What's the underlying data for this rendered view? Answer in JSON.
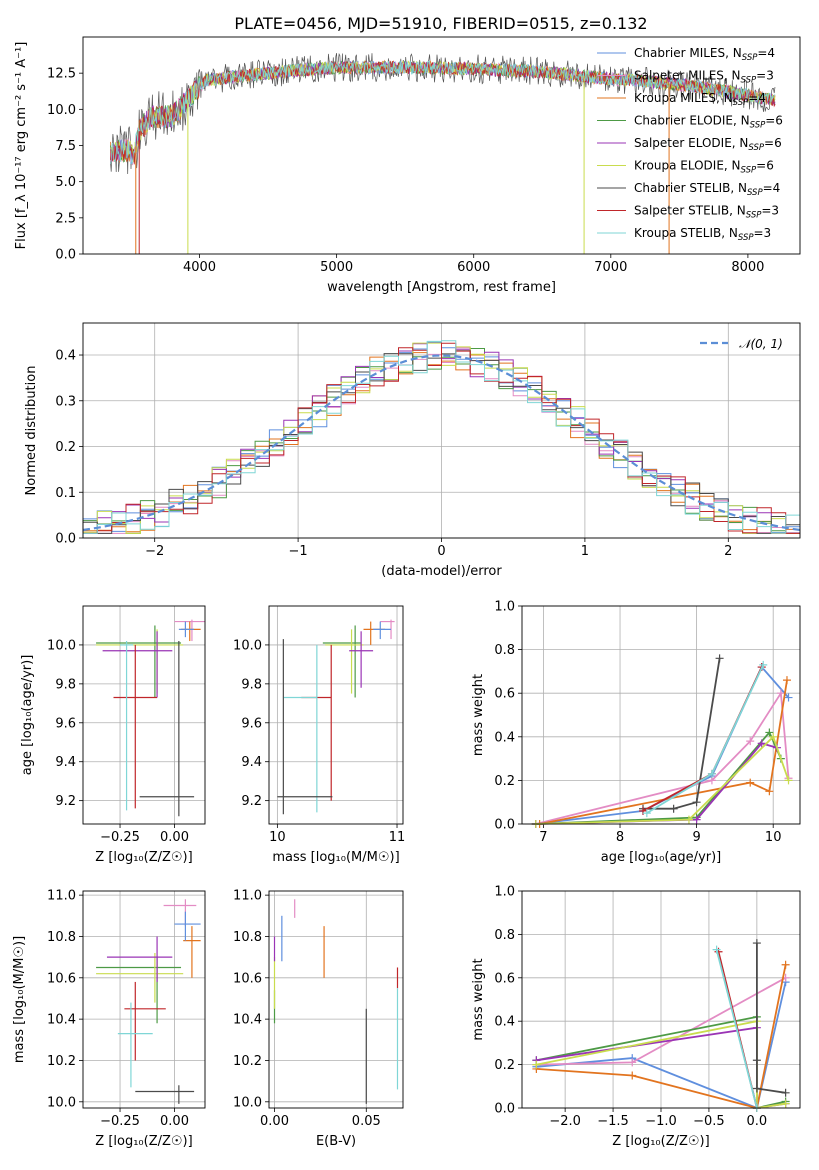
{
  "figure_title": "PLATE=0456, MJD=51910, FIBERID=0515, z=0.132",
  "chart_data": [
    {
      "id": "spectrum",
      "type": "line",
      "title": "PLATE=0456, MJD=51910, FIBERID=0515, z=0.132",
      "xlabel": "wavelength [Angstrom, rest frame]",
      "ylabel": "Flux [f_λ 10⁻¹⁷ erg cm⁻² s⁻¹ A⁻¹]",
      "xlim": [
        3150,
        8380
      ],
      "ylim": [
        0,
        15
      ],
      "xticks": [
        4000,
        5000,
        6000,
        7000,
        8000
      ],
      "yticks": [
        0.0,
        2.5,
        5.0,
        7.5,
        10.0,
        12.5
      ],
      "ytick_labels": [
        "0.0",
        "2.5",
        "5.0",
        "7.5",
        "10.0",
        "12.5"
      ],
      "legend_position": "upper right",
      "spectrum_envelope": {
        "x": [
          3350,
          3480,
          3520,
          3560,
          3650,
          3800,
          3950,
          4050,
          4300,
          4600,
          5000,
          5500,
          6000,
          6500,
          7000,
          7300,
          7600,
          8000,
          8200
        ],
        "y": [
          7.0,
          7.2,
          6.8,
          8.5,
          9.5,
          9.5,
          11.0,
          12.0,
          12.3,
          12.6,
          12.9,
          12.9,
          12.8,
          12.6,
          12.1,
          11.9,
          11.6,
          11.0,
          10.6
        ]
      },
      "series": [
        {
          "name": "Chabrier MILES, N_SSP=4",
          "label_main": "Chabrier MILES, N",
          "label_sub": "SSP",
          "label_tail": "=4",
          "color": "#5f8fde"
        },
        {
          "name": "Salpeter MILES, N_SSP=3",
          "label_main": "Salpeter MILES, N",
          "label_sub": "SSP",
          "label_tail": "=3",
          "color": "#e38cc4"
        },
        {
          "name": "Kroupa MILES, N_SSP=4",
          "label_main": "Kroupa MILES, N",
          "label_sub": "SSP",
          "label_tail": "=4",
          "color": "#e2741f"
        },
        {
          "name": "Chabrier ELODIE, N_SSP=6",
          "label_main": "Chabrier ELODIE, N",
          "label_sub": "SSP",
          "label_tail": "=6",
          "color": "#4d9a45"
        },
        {
          "name": "Salpeter ELODIE, N_SSP=6",
          "label_main": "Salpeter ELODIE, N",
          "label_sub": "SSP",
          "label_tail": "=6",
          "color": "#9a34b5"
        },
        {
          "name": "Kroupa ELODIE, N_SSP=6",
          "label_main": "Kroupa ELODIE, N",
          "label_sub": "SSP",
          "label_tail": "=6",
          "color": "#c9dc4e"
        },
        {
          "name": "Chabrier STELIB, N_SSP=4",
          "label_main": "Chabrier STELIB, N",
          "label_sub": "SSP",
          "label_tail": "=4",
          "color": "#4b4b4b"
        },
        {
          "name": "Salpeter STELIB, N_SSP=3",
          "label_main": "Salpeter STELIB, N",
          "label_sub": "SSP",
          "label_tail": "=3",
          "color": "#c0262a"
        },
        {
          "name": "Kroupa STELIB, N_SSP=3",
          "label_main": "Kroupa STELIB, N",
          "label_sub": "SSP",
          "label_tail": "=3",
          "color": "#7fd6d6"
        }
      ],
      "absorption_features": [
        {
          "x": 3535,
          "color": "#e2741f"
        },
        {
          "x": 3560,
          "color": "#c0262a"
        },
        {
          "x": 3915,
          "color": "#c9dc4e"
        },
        {
          "x": 6805,
          "color": "#c9dc4e"
        },
        {
          "x": 7425,
          "color": "#e2741f"
        }
      ]
    },
    {
      "id": "residuals",
      "type": "histogram",
      "xlabel": "(data-model)/error",
      "ylabel": "Normed distribution",
      "xlim": [
        -2.5,
        2.5
      ],
      "ylim": [
        0,
        0.47
      ],
      "xticks": [
        -2,
        -1,
        0,
        1,
        2
      ],
      "xtick_labels": [
        "−2",
        "−1",
        "0",
        "1",
        "2"
      ],
      "yticks": [
        0.0,
        0.1,
        0.2,
        0.3,
        0.4
      ],
      "ytick_labels": [
        "0.0",
        "0.1",
        "0.2",
        "0.3",
        "0.4"
      ],
      "grid": true,
      "bins": {
        "start": -2.5,
        "width": 0.1,
        "count": 50
      },
      "reference": {
        "name": "N(0,1)",
        "label": "𝒩(0, 1)",
        "color": "#5b8ed6",
        "style": "dashed",
        "sigma": 1.0,
        "mu": 0.0
      }
    },
    {
      "id": "age_vs_metallicity",
      "type": "errorbar",
      "xlabel": "Z [log₁₀(Z/Z☉)]",
      "ylabel": "age  [log₁₀(age/yr)]",
      "xlim": [
        -0.42,
        0.14
      ],
      "ylim": [
        9.08,
        10.2
      ],
      "xticks": [
        -0.25,
        0.0
      ],
      "xtick_labels": [
        "−0.25",
        "0.00"
      ],
      "yticks": [
        9.2,
        9.4,
        9.6,
        9.8,
        10.0
      ],
      "ytick_labels": [
        "9.2",
        "9.4",
        "9.6",
        "9.8",
        "10.0"
      ],
      "grid": true,
      "points": [
        {
          "x": 0.08,
          "xlo": 0.0,
          "xhi": 0.14,
          "y": 10.12,
          "ylo": 10.02,
          "yhi": 10.13,
          "color": "#e38cc4"
        },
        {
          "x": 0.07,
          "xlo": 0.03,
          "xhi": 0.12,
          "y": 10.08,
          "ylo": 10.02,
          "yhi": 10.12,
          "color": "#e2741f"
        },
        {
          "x": 0.05,
          "xlo": 0.02,
          "xhi": 0.09,
          "y": 10.08,
          "ylo": 10.04,
          "yhi": 10.12,
          "color": "#5f8fde"
        },
        {
          "x": -0.09,
          "xlo": -0.36,
          "xhi": 0.03,
          "y": 10.01,
          "ylo": 9.73,
          "yhi": 10.1,
          "color": "#4d9a45"
        },
        {
          "x": -0.08,
          "xlo": -0.36,
          "xhi": 0.04,
          "y": 10.0,
          "ylo": 9.75,
          "yhi": 10.08,
          "color": "#c9dc4e"
        },
        {
          "x": -0.08,
          "xlo": -0.33,
          "xhi": -0.01,
          "y": 9.97,
          "ylo": 9.73,
          "yhi": 10.07,
          "color": "#9a34b5"
        },
        {
          "x": -0.18,
          "xlo": -0.28,
          "xhi": -0.08,
          "y": 9.73,
          "ylo": 9.16,
          "yhi": 10.0,
          "color": "#c0262a"
        },
        {
          "x": -0.22,
          "xlo": -0.25,
          "xhi": -0.19,
          "y": 10.0,
          "ylo": 9.15,
          "yhi": 10.02,
          "color": "#7fd6d6"
        },
        {
          "x": 0.02,
          "xlo": -0.16,
          "xhi": 0.09,
          "y": 9.22,
          "ylo": 9.12,
          "yhi": 10.02,
          "color": "#4b4b4b"
        }
      ]
    },
    {
      "id": "age_vs_mass",
      "type": "errorbar",
      "xlabel": "mass [log₁₀(M/M☉)]",
      "ylabel": "",
      "xlim": [
        9.93,
        11.05
      ],
      "ylim": [
        9.08,
        10.2
      ],
      "xticks": [
        10,
        11
      ],
      "xtick_labels": [
        "10",
        "11"
      ],
      "yticks": [
        9.2,
        9.4,
        9.6,
        9.8,
        10.0
      ],
      "ytick_labels": [
        "9.2",
        "9.4",
        "9.6",
        "9.8",
        "10.0"
      ],
      "grid": true,
      "points": [
        {
          "x": 10.95,
          "xlo": 10.86,
          "xhi": 10.98,
          "y": 10.12,
          "ylo": 10.03,
          "yhi": 10.13,
          "color": "#e38cc4"
        },
        {
          "x": 10.78,
          "xlo": 10.72,
          "xhi": 10.9,
          "y": 10.08,
          "ylo": 10.0,
          "yhi": 10.12,
          "color": "#e2741f"
        },
        {
          "x": 10.86,
          "xlo": 10.8,
          "xhi": 10.95,
          "y": 10.08,
          "ylo": 10.03,
          "yhi": 10.12,
          "color": "#5f8fde"
        },
        {
          "x": 10.65,
          "xlo": 10.38,
          "xhi": 10.7,
          "y": 10.01,
          "ylo": 9.73,
          "yhi": 10.1,
          "color": "#4d9a45"
        },
        {
          "x": 10.62,
          "xlo": 10.4,
          "xhi": 10.72,
          "y": 10.0,
          "ylo": 9.75,
          "yhi": 10.08,
          "color": "#c9dc4e"
        },
        {
          "x": 10.7,
          "xlo": 10.6,
          "xhi": 10.8,
          "y": 9.97,
          "ylo": 9.78,
          "yhi": 10.07,
          "color": "#9a34b5"
        },
        {
          "x": 10.45,
          "xlo": 10.2,
          "xhi": 10.45,
          "y": 9.73,
          "ylo": 9.2,
          "yhi": 10.0,
          "color": "#c0262a"
        },
        {
          "x": 10.33,
          "xlo": 10.05,
          "xhi": 10.33,
          "y": 9.73,
          "ylo": 9.14,
          "yhi": 10.0,
          "color": "#7fd6d6"
        },
        {
          "x": 10.05,
          "xlo": 10.0,
          "xhi": 10.46,
          "y": 9.22,
          "ylo": 9.13,
          "yhi": 10.03,
          "color": "#4b4b4b"
        }
      ]
    },
    {
      "id": "weight_vs_age",
      "type": "line",
      "xlabel": "age  [log₁₀(age/yr)]",
      "ylabel": "mass weight",
      "xlim": [
        6.72,
        10.35
      ],
      "ylim": [
        0,
        1
      ],
      "xticks": [
        7,
        8,
        9,
        10
      ],
      "yticks": [
        0.0,
        0.2,
        0.4,
        0.6,
        0.8,
        1.0
      ],
      "ytick_labels": [
        "0.0",
        "0.2",
        "0.4",
        "0.6",
        "0.8",
        "1.0"
      ],
      "grid": true,
      "series": [
        {
          "name": "Chabrier MILES",
          "color": "#5f8fde",
          "x": [
            6.9,
            8.3,
            9.2,
            9.85,
            10.2
          ],
          "y": [
            0.0,
            0.06,
            0.22,
            0.72,
            0.58
          ]
        },
        {
          "name": "Salpeter MILES",
          "color": "#e38cc4",
          "x": [
            6.9,
            9.2,
            9.7,
            10.1,
            10.2
          ],
          "y": [
            0.0,
            0.2,
            0.38,
            0.6,
            0.21
          ]
        },
        {
          "name": "Kroupa MILES",
          "color": "#e2741f",
          "x": [
            6.95,
            9.7,
            9.95,
            10.18
          ],
          "y": [
            0.0,
            0.19,
            0.15,
            0.66
          ]
        },
        {
          "name": "Chabrier ELODIE",
          "color": "#4d9a45",
          "x": [
            6.9,
            9.0,
            9.95,
            10.1
          ],
          "y": [
            0.0,
            0.03,
            0.42,
            0.3
          ]
        },
        {
          "name": "Salpeter ELODIE",
          "color": "#9a34b5",
          "x": [
            6.9,
            9.0,
            9.85,
            10.05
          ],
          "y": [
            0.0,
            0.02,
            0.37,
            0.35
          ]
        },
        {
          "name": "Kroupa ELODIE",
          "color": "#c9dc4e",
          "x": [
            6.9,
            8.9,
            10.0,
            10.2
          ],
          "y": [
            0.0,
            0.02,
            0.4,
            0.2
          ]
        },
        {
          "name": "Chabrier STELIB",
          "color": "#4b4b4b",
          "x": [
            8.3,
            8.7,
            9.0,
            9.3
          ],
          "y": [
            0.07,
            0.07,
            0.1,
            0.76
          ]
        },
        {
          "name": "Salpeter STELIB",
          "color": "#c0262a",
          "x": [
            8.3,
            9.2,
            9.85
          ],
          "y": [
            0.06,
            0.23,
            0.72
          ]
        },
        {
          "name": "Kroupa STELIB",
          "color": "#7fd6d6",
          "x": [
            8.35,
            9.2,
            9.87
          ],
          "y": [
            0.05,
            0.23,
            0.73
          ]
        }
      ]
    },
    {
      "id": "mass_vs_metallicity",
      "type": "errorbar",
      "xlabel": "Z [log₁₀(Z/Z☉)]",
      "ylabel": "mass [log₁₀(M/M☉)]",
      "xlim": [
        -0.42,
        0.14
      ],
      "ylim": [
        9.97,
        11.02
      ],
      "xticks": [
        -0.25,
        0.0
      ],
      "xtick_labels": [
        "−0.25",
        "0.00"
      ],
      "yticks": [
        10.0,
        10.2,
        10.4,
        10.6,
        10.8,
        11.0
      ],
      "ytick_labels": [
        "10.0",
        "10.2",
        "10.4",
        "10.6",
        "10.8",
        "11.0"
      ],
      "grid": true,
      "points": [
        {
          "x": 0.05,
          "xlo": -0.05,
          "xhi": 0.1,
          "y": 10.95,
          "ylo": 10.85,
          "yhi": 10.98,
          "color": "#e38cc4"
        },
        {
          "x": 0.08,
          "xlo": 0.04,
          "xhi": 0.12,
          "y": 10.78,
          "ylo": 10.6,
          "yhi": 10.85,
          "color": "#e2741f"
        },
        {
          "x": 0.05,
          "xlo": 0.0,
          "xhi": 0.12,
          "y": 10.86,
          "ylo": 10.78,
          "yhi": 10.92,
          "color": "#5f8fde"
        },
        {
          "x": -0.08,
          "xlo": -0.36,
          "xhi": 0.03,
          "y": 10.65,
          "ylo": 10.38,
          "yhi": 10.7,
          "color": "#4d9a45"
        },
        {
          "x": -0.09,
          "xlo": -0.36,
          "xhi": 0.04,
          "y": 10.62,
          "ylo": 10.48,
          "yhi": 10.72,
          "color": "#c9dc4e"
        },
        {
          "x": -0.08,
          "xlo": -0.31,
          "xhi": -0.01,
          "y": 10.7,
          "ylo": 10.58,
          "yhi": 10.8,
          "color": "#9a34b5"
        },
        {
          "x": -0.18,
          "xlo": -0.23,
          "xhi": -0.04,
          "y": 10.45,
          "ylo": 10.2,
          "yhi": 10.58,
          "color": "#c0262a"
        },
        {
          "x": -0.2,
          "xlo": -0.26,
          "xhi": -0.1,
          "y": 10.33,
          "ylo": 10.07,
          "yhi": 10.48,
          "color": "#7fd6d6"
        },
        {
          "x": 0.02,
          "xlo": -0.18,
          "xhi": 0.09,
          "y": 10.05,
          "ylo": 9.99,
          "yhi": 10.08,
          "color": "#4b4b4b"
        }
      ]
    },
    {
      "id": "mass_vs_ebv",
      "type": "errorbar",
      "xlabel": "E(B-V)",
      "ylabel": "",
      "xlim": [
        -0.003,
        0.07
      ],
      "ylim": [
        9.97,
        11.02
      ],
      "xticks": [
        0.0,
        0.05
      ],
      "xtick_labels": [
        "0.00",
        "0.05"
      ],
      "yticks": [
        10.0,
        10.2,
        10.4,
        10.6,
        10.8,
        11.0
      ],
      "ytick_labels": [
        "10.0",
        "10.2",
        "10.4",
        "10.6",
        "10.8",
        "11.0"
      ],
      "grid": true,
      "points": [
        {
          "x": 0.011,
          "y": 10.95,
          "ylo": 10.89,
          "yhi": 10.98,
          "color": "#e38cc4"
        },
        {
          "x": 0.027,
          "y": 10.78,
          "ylo": 10.6,
          "yhi": 10.85,
          "color": "#e2741f"
        },
        {
          "x": 0.004,
          "y": 10.86,
          "ylo": 10.68,
          "yhi": 10.9,
          "color": "#5f8fde"
        },
        {
          "x": 0.0,
          "y": 10.45,
          "ylo": 10.38,
          "yhi": 10.54,
          "color": "#4d9a45"
        },
        {
          "x": 0.0,
          "y": 10.62,
          "ylo": 10.45,
          "yhi": 10.7,
          "color": "#c9dc4e"
        },
        {
          "x": 0.0,
          "y": 10.74,
          "ylo": 10.68,
          "yhi": 10.8,
          "color": "#9a34b5"
        },
        {
          "x": 0.067,
          "y": 10.6,
          "ylo": 10.55,
          "yhi": 10.65,
          "color": "#c0262a"
        },
        {
          "x": 0.067,
          "y": 10.3,
          "ylo": 10.06,
          "yhi": 10.55,
          "color": "#7fd6d6"
        },
        {
          "x": 0.05,
          "y": 10.2,
          "ylo": 9.99,
          "yhi": 10.45,
          "color": "#4b4b4b"
        }
      ]
    },
    {
      "id": "weight_vs_metallicity",
      "type": "line",
      "xlabel": "Z [log₁₀(Z/Z☉)]",
      "ylabel": "mass weight",
      "xlim": [
        -2.45,
        0.45
      ],
      "ylim": [
        0,
        1
      ],
      "xticks": [
        -2.0,
        -1.5,
        -1.0,
        -0.5,
        0.0
      ],
      "xtick_labels": [
        "−2.0",
        "−1.5",
        "−1.0",
        "−0.5",
        "0.0"
      ],
      "yticks": [
        0.0,
        0.2,
        0.4,
        0.6,
        0.8,
        1.0
      ],
      "ytick_labels": [
        "0.0",
        "0.2",
        "0.4",
        "0.6",
        "0.8",
        "1.0"
      ],
      "grid": true,
      "series": [
        {
          "name": "Chabrier MILES",
          "color": "#5f8fde",
          "x": [
            -2.3,
            -1.3,
            0.0,
            0.3
          ],
          "y": [
            0.19,
            0.23,
            0.0,
            0.58
          ]
        },
        {
          "name": "Salpeter MILES",
          "color": "#e38cc4",
          "x": [
            -2.3,
            -1.3,
            0.3
          ],
          "y": [
            0.2,
            0.21,
            0.6
          ]
        },
        {
          "name": "Kroupa MILES",
          "color": "#e2741f",
          "x": [
            -2.3,
            -1.3,
            0.0,
            0.3
          ],
          "y": [
            0.18,
            0.15,
            0.0,
            0.66
          ]
        },
        {
          "name": "Chabrier ELODIE",
          "color": "#4d9a45",
          "x": [
            -2.3,
            0.0,
            0.0,
            0.3
          ],
          "y": [
            0.22,
            0.42,
            0.0,
            0.03
          ]
        },
        {
          "name": "Salpeter ELODIE",
          "color": "#9a34b5",
          "x": [
            -2.3,
            0.0,
            0.0,
            0.3
          ],
          "y": [
            0.22,
            0.37,
            0.0,
            0.02
          ]
        },
        {
          "name": "Kroupa ELODIE",
          "color": "#c9dc4e",
          "x": [
            -2.3,
            0.0,
            0.0,
            0.3
          ],
          "y": [
            0.2,
            0.4,
            0.0,
            0.02
          ]
        },
        {
          "name": "Chabrier STELIB",
          "color": "#4b4b4b",
          "x": [
            0.0,
            0.0,
            0.0,
            0.3
          ],
          "y": [
            0.76,
            0.22,
            0.09,
            0.07
          ]
        },
        {
          "name": "Salpeter STELIB",
          "color": "#c0262a",
          "x": [
            -0.4,
            0.0
          ],
          "y": [
            0.72,
            0.0
          ]
        },
        {
          "name": "Kroupa STELIB",
          "color": "#7fd6d6",
          "x": [
            -0.42,
            0.0
          ],
          "y": [
            0.73,
            0.0
          ]
        }
      ]
    }
  ]
}
